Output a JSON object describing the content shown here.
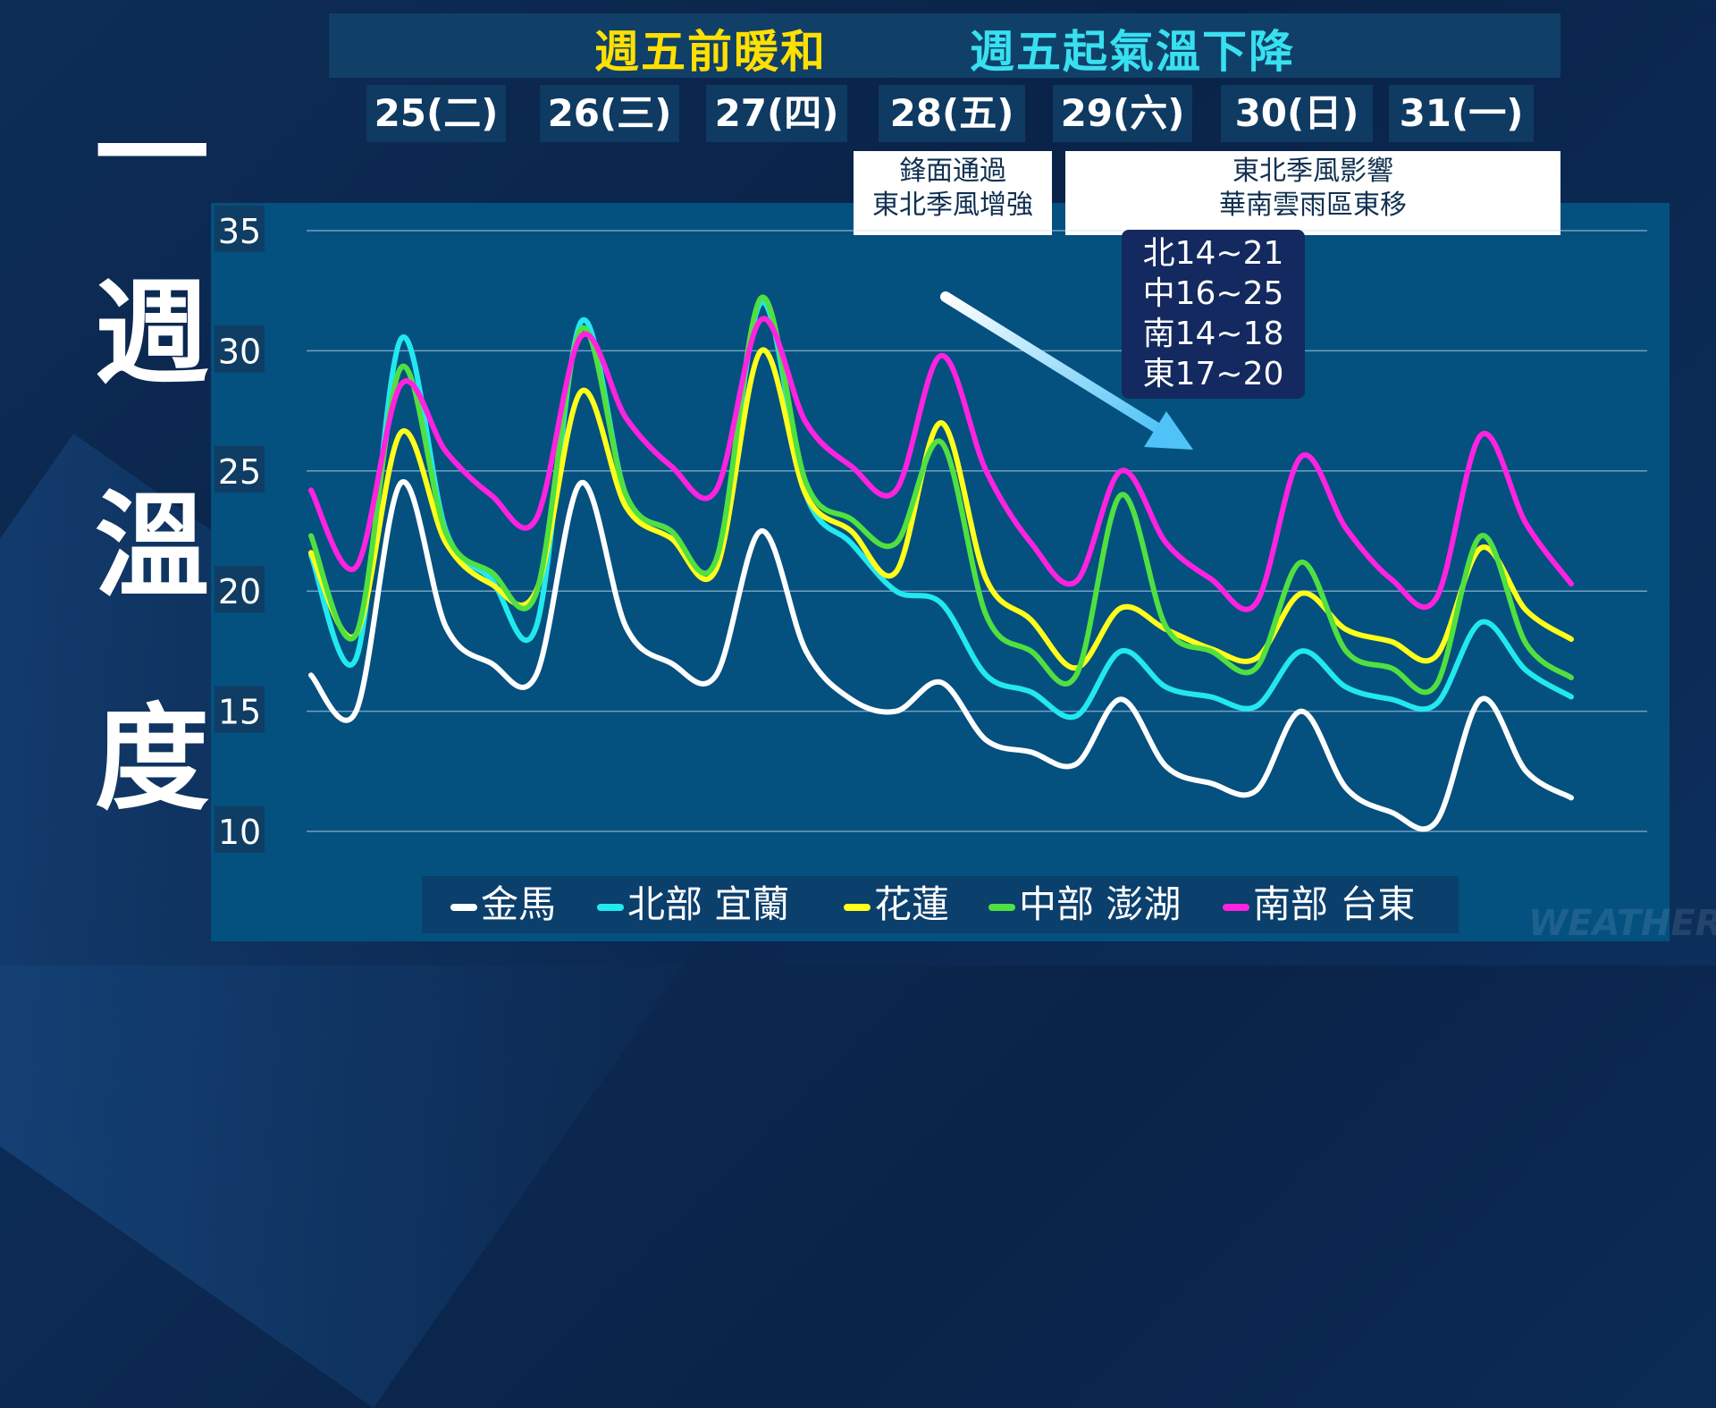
{
  "side_title": [
    "一",
    "週",
    "溫",
    "度"
  ],
  "banner": {
    "left_text": "週五前暖和",
    "right_text": "週五起氣溫下降",
    "left_color": "#ffe000",
    "right_color": "#38e0f0"
  },
  "days": [
    "25(二)",
    "26(三)",
    "27(四)",
    "28(五)",
    "29(六)",
    "30(日)",
    "31(一)"
  ],
  "notes": {
    "front_line1": "鋒面通過",
    "front_line2": "東北季風增強",
    "monsoon_line1": "東北季風影響",
    "monsoon_line2": "華南雲雨區東移"
  },
  "range_box": [
    "北14~21",
    "中16~25",
    "南14~18",
    "東17~20"
  ],
  "watermark": "WEATHER",
  "chart_data": {
    "type": "line",
    "ylim": [
      10,
      35
    ],
    "yticks": [
      35,
      30,
      25,
      20,
      15,
      10
    ],
    "grid": true,
    "legend_position": "bottom",
    "x": [
      0,
      0.5,
      1,
      1.5,
      2,
      2.5,
      3,
      3.5,
      4,
      4.5,
      5,
      5.5,
      6,
      6.5,
      7,
      7.5,
      8,
      8.5,
      9,
      9.5,
      10,
      10.5,
      11,
      11.5,
      12,
      12.5,
      13,
      13.5,
      14
    ],
    "series": [
      {
        "name": "金馬",
        "color": "#ffffff",
        "values": [
          16.5,
          15.0,
          24.5,
          18.5,
          17.0,
          16.5,
          24.5,
          18.5,
          17.0,
          16.5,
          22.5,
          17.5,
          15.5,
          15.0,
          16.2,
          13.8,
          13.3,
          12.8,
          15.5,
          12.7,
          12.0,
          11.7,
          15.0,
          11.8,
          10.8,
          10.4,
          15.5,
          12.5,
          11.4
        ]
      },
      {
        "name": "北部 宜蘭",
        "color": "#22e8f0",
        "values": [
          21.5,
          17.2,
          30.5,
          22.5,
          20.5,
          18.5,
          31.2,
          24.0,
          22.5,
          21.0,
          32.0,
          24.0,
          22.0,
          20.0,
          19.5,
          16.5,
          15.8,
          14.8,
          17.5,
          16.0,
          15.6,
          15.2,
          17.5,
          16.0,
          15.5,
          15.3,
          18.7,
          16.7,
          15.6
        ]
      },
      {
        "name": "花蓮",
        "color": "#ffff1a",
        "values": [
          21.6,
          18.2,
          26.6,
          22.0,
          20.3,
          20.0,
          28.3,
          23.5,
          22.2,
          20.9,
          30.0,
          24.0,
          22.5,
          20.8,
          27.0,
          20.5,
          18.8,
          16.8,
          19.3,
          18.4,
          17.6,
          17.2,
          19.9,
          18.4,
          17.9,
          17.3,
          21.8,
          19.2,
          18.0
        ]
      },
      {
        "name": "中部 澎湖",
        "color": "#50e040",
        "values": [
          22.3,
          18.2,
          29.3,
          22.4,
          20.8,
          19.9,
          30.9,
          24.0,
          22.5,
          21.3,
          32.2,
          24.5,
          23.0,
          22.0,
          26.2,
          19.0,
          17.5,
          16.5,
          24.0,
          18.5,
          17.5,
          16.8,
          21.2,
          17.5,
          16.8,
          16.1,
          22.3,
          17.8,
          16.4
        ]
      },
      {
        "name": "南部 台東",
        "color": "#ff22e0",
        "values": [
          24.2,
          21.0,
          28.6,
          25.8,
          24.0,
          23.0,
          30.6,
          27.2,
          25.2,
          24.2,
          31.3,
          27.0,
          25.2,
          24.2,
          29.8,
          25.0,
          22.0,
          20.4,
          25.0,
          22.0,
          20.5,
          19.5,
          25.6,
          22.6,
          20.5,
          19.7,
          26.5,
          22.8,
          20.3
        ]
      }
    ]
  }
}
